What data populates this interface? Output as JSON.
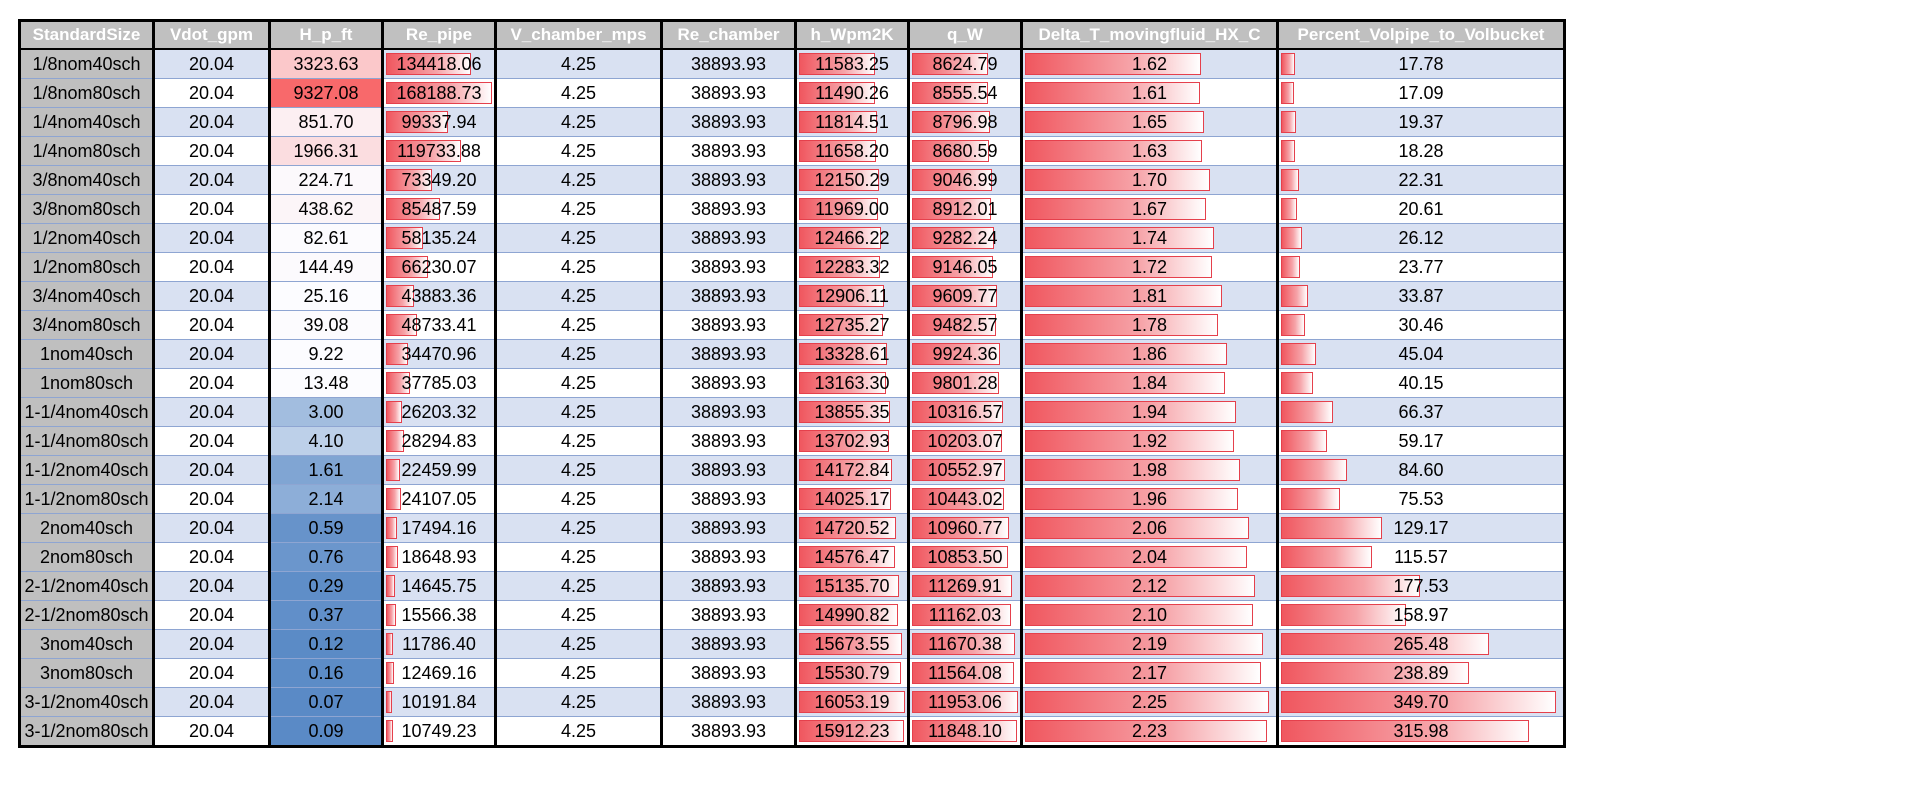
{
  "columns": [
    "StandardSize",
    "Vdot_gpm",
    "H_p_ft",
    "Re_pipe",
    "V_chamber_mps",
    "Re_chamber",
    "h_Wpm2K",
    "q_W",
    "Delta_T_movingfluid_HX_C",
    "Percent_Volpipe_to_Volbucket"
  ],
  "rows": [
    [
      "1/8nom40sch",
      "20.04",
      "3323.63",
      "134418.06",
      "4.25",
      "38893.93",
      "11583.25",
      "8624.79",
      "1.62",
      "17.78"
    ],
    [
      "1/8nom80sch",
      "20.04",
      "9327.08",
      "168188.73",
      "4.25",
      "38893.93",
      "11490.26",
      "8555.54",
      "1.61",
      "17.09"
    ],
    [
      "1/4nom40sch",
      "20.04",
      "851.70",
      "99337.94",
      "4.25",
      "38893.93",
      "11814.51",
      "8796.98",
      "1.65",
      "19.37"
    ],
    [
      "1/4nom80sch",
      "20.04",
      "1966.31",
      "119733.88",
      "4.25",
      "38893.93",
      "11658.20",
      "8680.59",
      "1.63",
      "18.28"
    ],
    [
      "3/8nom40sch",
      "20.04",
      "224.71",
      "73349.20",
      "4.25",
      "38893.93",
      "12150.29",
      "9046.99",
      "1.70",
      "22.31"
    ],
    [
      "3/8nom80sch",
      "20.04",
      "438.62",
      "85487.59",
      "4.25",
      "38893.93",
      "11969.00",
      "8912.01",
      "1.67",
      "20.61"
    ],
    [
      "1/2nom40sch",
      "20.04",
      "82.61",
      "58135.24",
      "4.25",
      "38893.93",
      "12466.22",
      "9282.24",
      "1.74",
      "26.12"
    ],
    [
      "1/2nom80sch",
      "20.04",
      "144.49",
      "66230.07",
      "4.25",
      "38893.93",
      "12283.32",
      "9146.05",
      "1.72",
      "23.77"
    ],
    [
      "3/4nom40sch",
      "20.04",
      "25.16",
      "43883.36",
      "4.25",
      "38893.93",
      "12906.11",
      "9609.77",
      "1.81",
      "33.87"
    ],
    [
      "3/4nom80sch",
      "20.04",
      "39.08",
      "48733.41",
      "4.25",
      "38893.93",
      "12735.27",
      "9482.57",
      "1.78",
      "30.46"
    ],
    [
      "1nom40sch",
      "20.04",
      "9.22",
      "34470.96",
      "4.25",
      "38893.93",
      "13328.61",
      "9924.36",
      "1.86",
      "45.04"
    ],
    [
      "1nom80sch",
      "20.04",
      "13.48",
      "37785.03",
      "4.25",
      "38893.93",
      "13163.30",
      "9801.28",
      "1.84",
      "40.15"
    ],
    [
      "1-1/4nom40sch",
      "20.04",
      "3.00",
      "26203.32",
      "4.25",
      "38893.93",
      "13855.35",
      "10316.57",
      "1.94",
      "66.37"
    ],
    [
      "1-1/4nom80sch",
      "20.04",
      "4.10",
      "28294.83",
      "4.25",
      "38893.93",
      "13702.93",
      "10203.07",
      "1.92",
      "59.17"
    ],
    [
      "1-1/2nom40sch",
      "20.04",
      "1.61",
      "22459.99",
      "4.25",
      "38893.93",
      "14172.84",
      "10552.97",
      "1.98",
      "84.60"
    ],
    [
      "1-1/2nom80sch",
      "20.04",
      "2.14",
      "24107.05",
      "4.25",
      "38893.93",
      "14025.17",
      "10443.02",
      "1.96",
      "75.53"
    ],
    [
      "2nom40sch",
      "20.04",
      "0.59",
      "17494.16",
      "4.25",
      "38893.93",
      "14720.52",
      "10960.77",
      "2.06",
      "129.17"
    ],
    [
      "2nom80sch",
      "20.04",
      "0.76",
      "18648.93",
      "4.25",
      "38893.93",
      "14576.47",
      "10853.50",
      "2.04",
      "115.57"
    ],
    [
      "2-1/2nom40sch",
      "20.04",
      "0.29",
      "14645.75",
      "4.25",
      "38893.93",
      "15135.70",
      "11269.91",
      "2.12",
      "177.53"
    ],
    [
      "2-1/2nom80sch",
      "20.04",
      "0.37",
      "15566.38",
      "4.25",
      "38893.93",
      "14990.82",
      "11162.03",
      "2.10",
      "158.97"
    ],
    [
      "3nom40sch",
      "20.04",
      "0.12",
      "11786.40",
      "4.25",
      "38893.93",
      "15673.55",
      "11670.38",
      "2.19",
      "265.48"
    ],
    [
      "3nom80sch",
      "20.04",
      "0.16",
      "12469.16",
      "4.25",
      "38893.93",
      "15530.79",
      "11564.08",
      "2.17",
      "238.89"
    ],
    [
      "3-1/2nom40sch",
      "20.04",
      "0.07",
      "10191.84",
      "4.25",
      "38893.93",
      "16053.19",
      "11953.06",
      "2.25",
      "349.70"
    ],
    [
      "3-1/2nom80sch",
      "20.04",
      "0.09",
      "10749.23",
      "4.25",
      "38893.93",
      "15912.23",
      "11848.10",
      "2.23",
      "315.98"
    ]
  ],
  "formatting": {
    "color_scale_column": "H_p_ft",
    "color_scale_colors": {
      "high": "#f8696b",
      "mid": "#fcfcff",
      "low": "#5a8ac6"
    },
    "data_bar_columns": [
      "Re_pipe",
      "h_Wpm2K",
      "q_W",
      "Delta_T_movingfluid_HX_C",
      "Percent_Volpipe_to_Volbucket"
    ],
    "data_bar_color": "#f0575f",
    "header_bg": "#c0c0c0",
    "header_text_color": "#ffffff",
    "band_color": "#d9e1f2",
    "size_column_bg": "#bfbfbf"
  }
}
